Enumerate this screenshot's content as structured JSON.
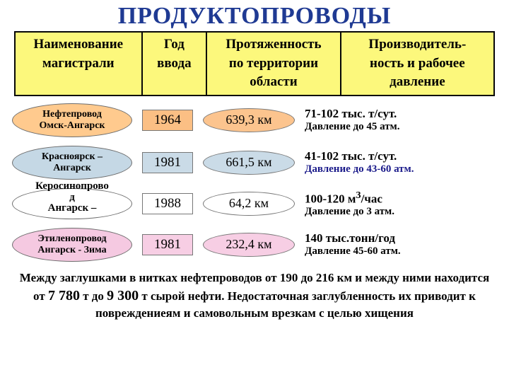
{
  "title": "ПРОДУКТОПРОВОДЫ",
  "colors": {
    "title": "#1f3a93",
    "header_bg": "#fcf87c",
    "header_border": "#070707",
    "ell_orange": "#ffca8e",
    "ell_blue": "#c5d8e5",
    "ell_white": "#ffffff",
    "ell_pink": "#f5c9e1",
    "year_orange": "#fbbf84",
    "year_blue": "#cadbe7",
    "year_white": "#ffffff",
    "year_pink": "#f7cee4",
    "km_orange": "#fcc48e",
    "km_blue": "#cadbe7",
    "km_white": "#ffffff",
    "km_pink": "#f7cee4"
  },
  "headers": {
    "c1a": "Наименование",
    "c1b": "магистрали",
    "c2a": "Год",
    "c2b": "ввода",
    "c3a": "Протяженность",
    "c3b": "по территории области",
    "c4a": "Производитель-",
    "c4b": "ность и рабочее давление"
  },
  "col_widths": {
    "c1": 180,
    "c2": 92,
    "c3": 190,
    "c4": 218
  },
  "rows": [
    {
      "name_l1": "Нефтепровод",
      "name_l2": "Омск-Ангарск",
      "year": "1964",
      "km": "639,3 км",
      "cap_l1": "71-102 тыс. т/сут.",
      "cap_l2": "Давление до 45 атм.",
      "ell_bg": "#ffca8e",
      "year_bg": "#fbbf84",
      "km_bg": "#fcc48e"
    },
    {
      "name_l1": "Красноярск –",
      "name_l2": "Ангарск",
      "year": "1981",
      "km": "661,5 км",
      "cap_l1": "41-102 тыс. т/сут.",
      "cap_l2": "Давление до 43-60 атм.",
      "ell_bg": "#c5d8e5",
      "year_bg": "#cadbe7",
      "km_bg": "#cadbe7",
      "cap_l2_color": "#1a1a8a"
    },
    {
      "name_l1": "Керосинопрово",
      "name_l2": "д",
      "name_l3": "Ангарск –",
      "year": "1988",
      "km": "64,2 км",
      "cap_l1_html": "100-120 м<sup>3</sup>/час",
      "cap_l2": "Давление до 3 атм.",
      "ell_bg": "#ffffff",
      "year_bg": "#ffffff",
      "km_bg": "#ffffff",
      "name_outside": true
    },
    {
      "name_l1": "Этиленопровод",
      "name_l2": "Ангарск - Зима",
      "year": "1981",
      "km": "232,4 км",
      "cap_l1": "140 тыс.тонн/год",
      "cap_l2": "Давление 45-60 атм.",
      "ell_bg": "#f5c9e1",
      "year_bg": "#f7cee4",
      "km_bg": "#f7cee4"
    }
  ],
  "footer": {
    "part1": "Между заглушками в нитках  нефтепроводов  от 190 до 216 км и между ними находится от ",
    "big1": "7 780",
    "part2": " т до ",
    "big2": "9 300",
    "part3": " т сырой нефти. Недостаточная заглубленность их приводит к повреждениеям и самовольным врезкам с целью хищения"
  }
}
